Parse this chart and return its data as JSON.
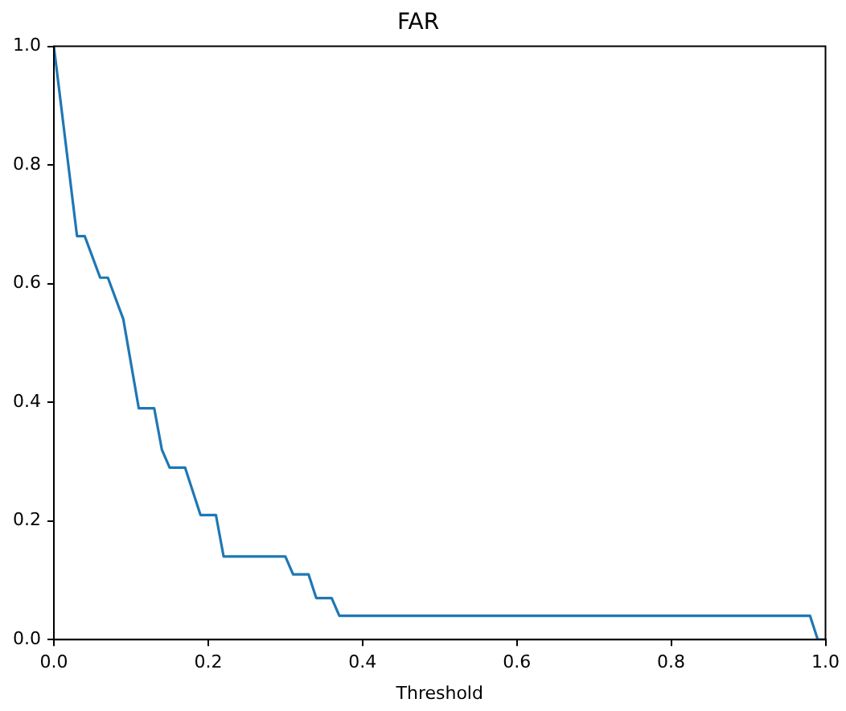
{
  "chart_data": {
    "type": "line",
    "title": "FAR",
    "xlabel": "Threshold",
    "x": [
      0,
      0.03,
      0.04,
      0.06,
      0.07,
      0.09,
      0.11,
      0.13,
      0.14,
      0.15,
      0.17,
      0.19,
      0.21,
      0.22,
      0.3,
      0.31,
      0.33,
      0.34,
      0.36,
      0.37,
      0.98,
      0.99,
      1.0
    ],
    "series": [
      {
        "color": "#1f77b4",
        "values": [
          1,
          0.68,
          0.68,
          0.61,
          0.61,
          0.54,
          0.39,
          0.39,
          0.32,
          0.29,
          0.29,
          0.21,
          0.21,
          0.14,
          0.14,
          0.11,
          0.11,
          0.07,
          0.07,
          0.04,
          0.04,
          0,
          0
        ]
      }
    ],
    "xlim": [
      0,
      1
    ],
    "ylim": [
      0,
      1
    ],
    "xticks": [
      {
        "value": 0,
        "label": "0.0"
      },
      0.2,
      0.4,
      0.6,
      0.8,
      {
        "value": 1,
        "label": "1.0"
      }
    ],
    "yticks": [
      {
        "value": 0,
        "label": "0.0"
      },
      0.2,
      0.4,
      0.6,
      0.8,
      {
        "value": 1,
        "label": "1.0"
      }
    ],
    "grid": false,
    "legend": false,
    "marker": "none",
    "line_style": "solid"
  }
}
